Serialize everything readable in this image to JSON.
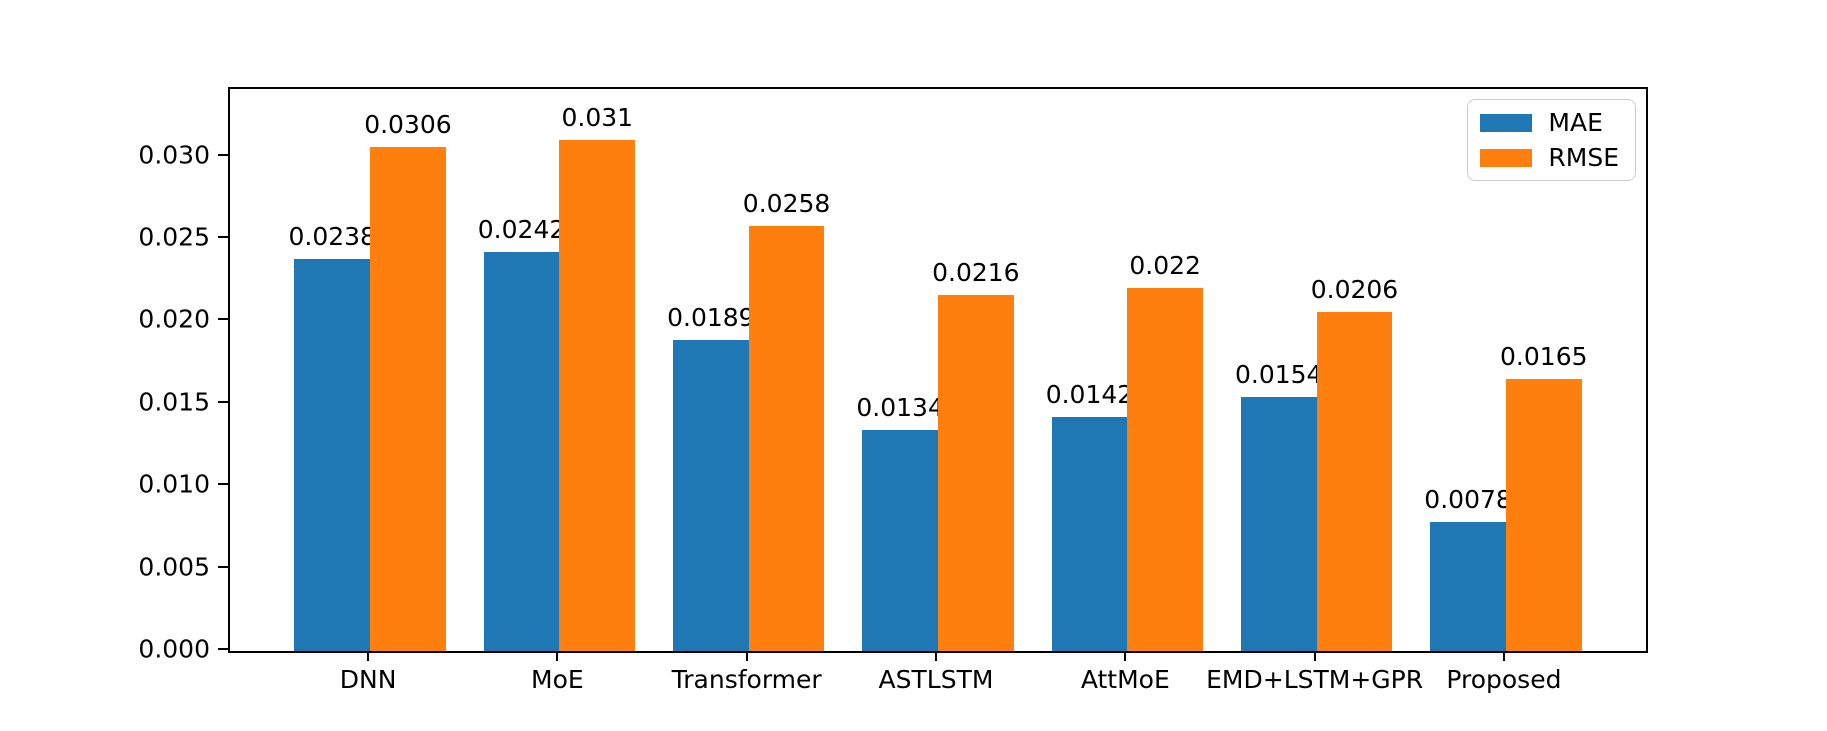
{
  "figure": {
    "background_color": "#ffffff",
    "axes_border_color": "#000000",
    "text_color": "#000000"
  },
  "chart_data": {
    "type": "bar",
    "title": "",
    "xlabel": "",
    "ylabel": "",
    "categories": [
      "DNN",
      "MoE",
      "Transformer",
      "ASTLSTM",
      "AttMoE",
      "EMD+LSTM+GPR",
      "Proposed"
    ],
    "series": [
      {
        "name": "MAE",
        "color": "#1f77b4",
        "values": [
          0.0238,
          0.0242,
          0.0189,
          0.0134,
          0.0142,
          0.0154,
          0.0078
        ],
        "labels": [
          "0.0238",
          "0.0242",
          "0.0189",
          "0.0134",
          "0.0142",
          "0.0154",
          "0.0078"
        ]
      },
      {
        "name": "RMSE",
        "color": "#ff7f0e",
        "values": [
          0.0306,
          0.031,
          0.0258,
          0.0216,
          0.022,
          0.0206,
          0.0165
        ],
        "labels": [
          "0.0306",
          "0.031",
          "0.0258",
          "0.0216",
          "0.022",
          "0.0206",
          "0.0165"
        ]
      }
    ],
    "ylim": [
      0,
      0.0341
    ],
    "ytick_values": [
      0.0,
      0.005,
      0.01,
      0.015,
      0.02,
      0.025,
      0.03
    ],
    "ytick_labels": [
      "0.000",
      "0.005",
      "0.010",
      "0.015",
      "0.020",
      "0.025",
      "0.030"
    ],
    "grid": false,
    "legend_position": "upper right",
    "bar_group_width_units": 0.8,
    "xlim_units": [
      -0.74,
      6.74
    ]
  },
  "legend": {
    "items": [
      {
        "label": "MAE",
        "swatch_color": "#1f77b4"
      },
      {
        "label": "RMSE",
        "swatch_color": "#ff7f0e"
      }
    ]
  }
}
